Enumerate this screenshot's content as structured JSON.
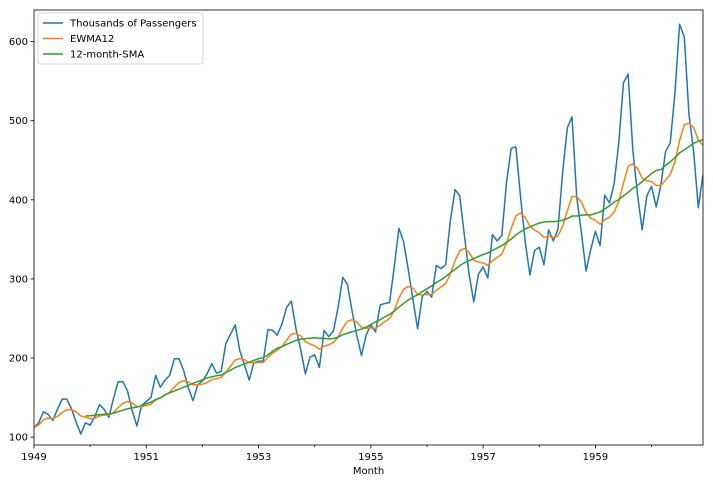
{
  "chart_data": {
    "type": "line",
    "title": "",
    "xlabel": "Month",
    "ylabel": "",
    "x_start": "1949-01",
    "x_end": "1960-12",
    "x_ticks": [
      "1949",
      "1951",
      "1953",
      "1955",
      "1957",
      "1959"
    ],
    "ylim": [
      90,
      640
    ],
    "y_ticks": [
      100,
      200,
      300,
      400,
      500,
      600
    ],
    "legend_position": "top-left",
    "grid": false,
    "series": [
      {
        "name": "Thousands of Passengers",
        "color": "#1f77b4",
        "values": [
          112,
          118,
          132,
          129,
          121,
          135,
          148,
          148,
          136,
          119,
          104,
          118,
          115,
          126,
          141,
          135,
          125,
          149,
          170,
          170,
          158,
          133,
          114,
          140,
          145,
          150,
          178,
          163,
          172,
          178,
          199,
          199,
          184,
          162,
          146,
          166,
          171,
          180,
          193,
          181,
          183,
          218,
          230,
          242,
          209,
          191,
          172,
          194,
          196,
          196,
          236,
          235,
          229,
          243,
          264,
          272,
          237,
          211,
          180,
          201,
          204,
          188,
          235,
          227,
          234,
          264,
          302,
          293,
          259,
          229,
          203,
          229,
          242,
          233,
          267,
          269,
          270,
          315,
          364,
          347,
          312,
          274,
          237,
          278,
          284,
          277,
          317,
          313,
          318,
          374,
          413,
          405,
          355,
          306,
          271,
          306,
          315,
          301,
          356,
          348,
          355,
          422,
          465,
          467,
          404,
          347,
          305,
          336,
          340,
          318,
          362,
          348,
          363,
          435,
          491,
          505,
          404,
          359,
          310,
          337,
          360,
          342,
          406,
          396,
          420,
          472,
          548,
          559,
          463,
          407,
          362,
          405,
          417,
          391,
          419,
          461,
          472,
          535,
          622,
          606,
          508,
          461,
          390,
          432
        ]
      },
      {
        "name": "EWMA12",
        "color": "#ff7f0e",
        "values": []
      },
      {
        "name": "12-month-SMA",
        "color": "#2ca02c",
        "values": []
      }
    ]
  }
}
